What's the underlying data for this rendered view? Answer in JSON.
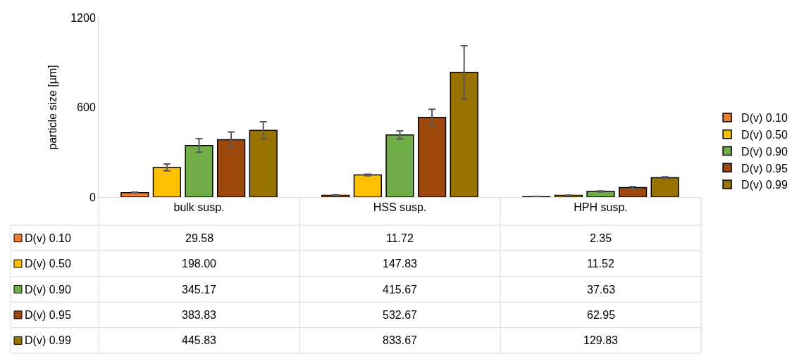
{
  "chart_data": {
    "type": "bar",
    "ylabel": "particle size [µm]",
    "categories": [
      "bulk susp.",
      "HSS susp.",
      "HPH susp."
    ],
    "series": [
      {
        "name": "D(v) 0.10",
        "color": "#ed7d31",
        "values": [
          29.58,
          11.72,
          2.35
        ],
        "value_labels": [
          "29.58",
          "11.72",
          "2.35"
        ],
        "errors": [
          3,
          3,
          1
        ]
      },
      {
        "name": "D(v) 0.50",
        "color": "#ffc000",
        "values": [
          198.0,
          147.83,
          11.52
        ],
        "value_labels": [
          "198.00",
          "147.83",
          "11.52"
        ],
        "errors": [
          23,
          5,
          2
        ]
      },
      {
        "name": "D(v) 0.90",
        "color": "#70ad47",
        "values": [
          345.17,
          415.67,
          37.63
        ],
        "value_labels": [
          "345.17",
          "415.67",
          "37.63"
        ],
        "errors": [
          45,
          27,
          3
        ]
      },
      {
        "name": "D(v) 0.95",
        "color": "#9e480e",
        "values": [
          383.83,
          532.67,
          62.95
        ],
        "value_labels": [
          "383.83",
          "532.67",
          "62.95"
        ],
        "errors": [
          51,
          54,
          6
        ]
      },
      {
        "name": "D(v) 0.99",
        "color": "#997300",
        "values": [
          445.83,
          833.67,
          129.83
        ],
        "value_labels": [
          "445.83",
          "833.67",
          "129.83"
        ],
        "errors": [
          58,
          178,
          5
        ]
      }
    ],
    "ylim": [
      0,
      1200
    ],
    "yticks": [
      0,
      600,
      1200
    ],
    "grid": false,
    "legend": "right"
  }
}
